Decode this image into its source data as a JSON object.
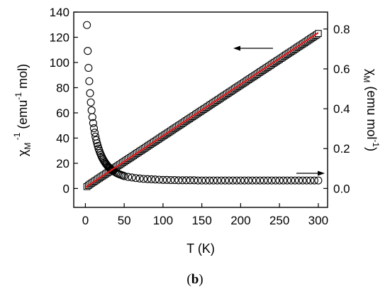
{
  "caption": {
    "open": "(",
    "letter": "b",
    "close": ")"
  },
  "chart_data": {
    "type": "scatter",
    "title": "",
    "xlabel": "T (K)",
    "ylabel_left": "χM-1 (emu-1 mol)",
    "ylabel_right": "χM (emu mol-1)",
    "xlim": [
      -15,
      312
    ],
    "ylim_left": [
      -15,
      140
    ],
    "ylim_right": [
      -0.095,
      0.885
    ],
    "xticks": [
      0,
      50,
      100,
      150,
      200,
      250,
      300
    ],
    "yticks_left": [
      0,
      20,
      40,
      60,
      80,
      100,
      120,
      140
    ],
    "yticks_right": [
      0.0,
      0.2,
      0.4,
      0.6,
      0.8
    ],
    "grid": false,
    "fit_line": {
      "color": "#e01818",
      "x": [
        0,
        300
      ],
      "y": [
        0.9,
        123.6
      ]
    },
    "series": [
      {
        "axis": "left",
        "marker": "square",
        "x": [
          2,
          4,
          6,
          8,
          10,
          12,
          14,
          16,
          18,
          20,
          22,
          24,
          26,
          28,
          30,
          32,
          34,
          36,
          38,
          40,
          42,
          44,
          46,
          48,
          50,
          52,
          54,
          56,
          58,
          60,
          62,
          64,
          66,
          68,
          70,
          72,
          74,
          76,
          78,
          80,
          82,
          84,
          86,
          88,
          90,
          92,
          94,
          96,
          98,
          100,
          102,
          104,
          106,
          108,
          110,
          112,
          114,
          116,
          118,
          120,
          122,
          124,
          126,
          128,
          130,
          132,
          134,
          136,
          138,
          140,
          142,
          144,
          146,
          148,
          150,
          152,
          154,
          156,
          158,
          160,
          162,
          164,
          166,
          168,
          170,
          172,
          174,
          176,
          178,
          180,
          182,
          184,
          186,
          188,
          190,
          192,
          194,
          196,
          198,
          200,
          202,
          204,
          206,
          208,
          210,
          212,
          214,
          216,
          218,
          220,
          222,
          224,
          226,
          228,
          230,
          232,
          234,
          236,
          238,
          240,
          242,
          244,
          246,
          248,
          250,
          252,
          254,
          256,
          258,
          260,
          262,
          264,
          266,
          268,
          270,
          272,
          274,
          276,
          278,
          280,
          282,
          284,
          286,
          288,
          290,
          292,
          294,
          296,
          298,
          300
        ],
        "y": [
          1.5,
          2.4,
          3.4,
          4.2,
          5.0,
          5.8,
          6.6,
          7.5,
          8.3,
          9.1,
          9.9,
          10.7,
          11.5,
          12.3,
          13.1,
          14.0,
          14.8,
          15.6,
          16.4,
          17.2,
          18.0,
          18.8,
          19.6,
          20.5,
          21.3,
          22.1,
          22.9,
          23.7,
          24.5,
          25.3,
          26.1,
          27.0,
          27.8,
          28.6,
          29.4,
          30.2,
          31.0,
          31.8,
          32.6,
          33.5,
          34.3,
          35.1,
          35.9,
          36.7,
          37.5,
          38.3,
          39.1,
          40.0,
          40.8,
          41.6,
          42.4,
          43.2,
          44.0,
          44.8,
          45.6,
          46.5,
          47.3,
          48.1,
          48.9,
          49.7,
          50.5,
          51.3,
          52.1,
          53.0,
          53.8,
          54.6,
          55.4,
          56.2,
          57.0,
          57.8,
          58.6,
          59.5,
          60.3,
          61.1,
          61.9,
          62.7,
          63.5,
          64.3,
          65.1,
          66.0,
          66.8,
          67.6,
          68.4,
          69.2,
          70.0,
          70.8,
          71.6,
          72.5,
          73.3,
          74.1,
          74.9,
          75.7,
          76.5,
          77.3,
          78.1,
          79.0,
          79.8,
          80.6,
          81.4,
          82.2,
          83.0,
          83.8,
          84.6,
          85.5,
          86.3,
          87.1,
          87.9,
          88.7,
          89.5,
          90.3,
          91.1,
          92.0,
          92.8,
          93.6,
          94.4,
          95.2,
          96.0,
          96.8,
          97.6,
          98.5,
          99.3,
          100.1,
          100.9,
          101.7,
          102.5,
          103.3,
          104.1,
          105.0,
          105.8,
          106.6,
          107.4,
          108.2,
          109.0,
          109.8,
          110.6,
          111.5,
          112.3,
          113.1,
          113.9,
          114.7,
          115.5,
          116.3,
          117.1,
          118.0,
          118.8,
          119.6,
          120.4,
          121.2,
          122.0,
          123.0
        ]
      },
      {
        "axis": "right",
        "marker": "circle",
        "x": [
          2,
          3,
          4,
          5,
          6,
          7,
          8,
          9,
          10,
          11,
          12,
          13,
          14,
          15,
          16,
          17,
          18,
          19,
          20,
          21,
          22,
          23,
          24,
          25,
          26,
          27,
          28,
          29,
          30,
          31,
          32,
          33,
          34,
          35,
          36,
          38,
          40,
          42,
          44,
          46,
          48,
          50,
          55,
          60,
          65,
          70,
          75,
          80,
          85,
          90,
          95,
          100,
          105,
          110,
          115,
          120,
          125,
          130,
          135,
          140,
          145,
          150,
          155,
          160,
          165,
          170,
          175,
          180,
          185,
          190,
          195,
          200,
          205,
          210,
          215,
          220,
          225,
          230,
          235,
          240,
          245,
          250,
          255,
          260,
          265,
          270,
          275,
          280,
          285,
          290,
          295,
          300
        ],
        "y": [
          0.82,
          0.69,
          0.605,
          0.538,
          0.478,
          0.432,
          0.392,
          0.358,
          0.328,
          0.302,
          0.28,
          0.26,
          0.243,
          0.227,
          0.213,
          0.2,
          0.189,
          0.178,
          0.169,
          0.16,
          0.152,
          0.145,
          0.138,
          0.132,
          0.126,
          0.121,
          0.116,
          0.111,
          0.107,
          0.103,
          0.1,
          0.096,
          0.093,
          0.09,
          0.088,
          0.083,
          0.078,
          0.074,
          0.071,
          0.068,
          0.065,
          0.062,
          0.058,
          0.055,
          0.052,
          0.05,
          0.048,
          0.047,
          0.046,
          0.045,
          0.044,
          0.043,
          0.043,
          0.042,
          0.042,
          0.041,
          0.041,
          0.041,
          0.041,
          0.041,
          0.04,
          0.04,
          0.04,
          0.04,
          0.04,
          0.04,
          0.04,
          0.04,
          0.04,
          0.04,
          0.04,
          0.04,
          0.04,
          0.04,
          0.04,
          0.04,
          0.04,
          0.04,
          0.04,
          0.04,
          0.04,
          0.04,
          0.04,
          0.04,
          0.04,
          0.04,
          0.04,
          0.04,
          0.04,
          0.04,
          0.04,
          0.04
        ]
      }
    ]
  }
}
